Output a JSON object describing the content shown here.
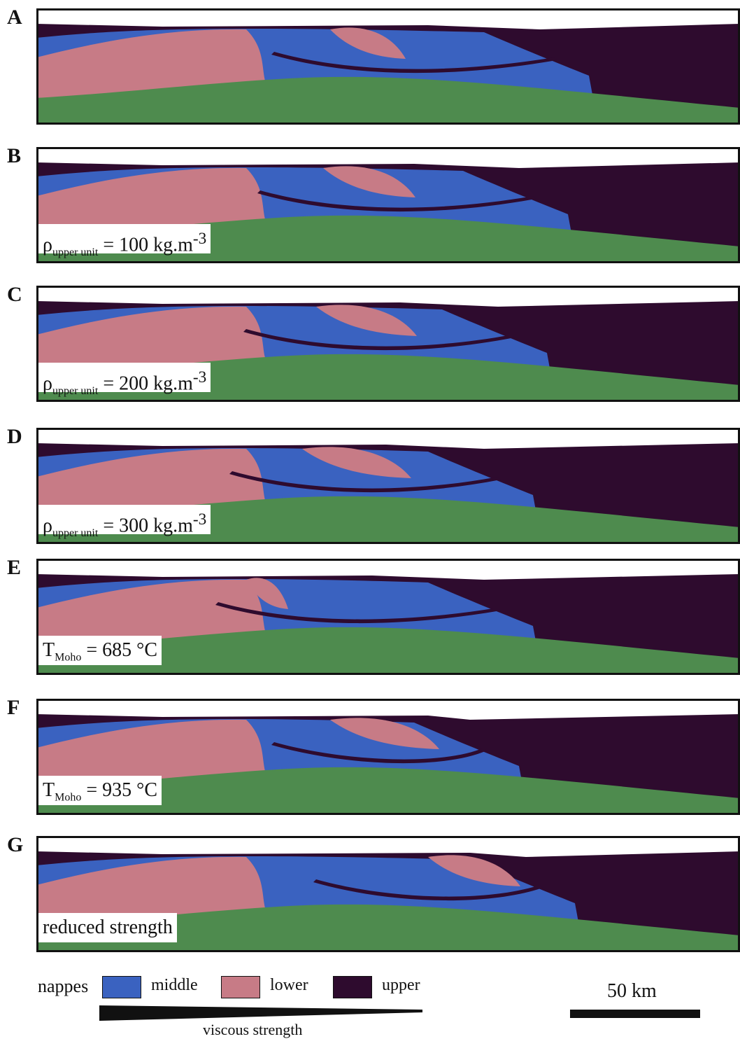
{
  "panels": [
    {
      "letter": "A",
      "label": null
    },
    {
      "letter": "B",
      "label": {
        "sym": "ρ",
        "sub": "upper unit",
        "rest": " = 100 kg.m",
        "sup": "-3"
      }
    },
    {
      "letter": "C",
      "label": {
        "sym": "ρ",
        "sub": "upper unit",
        "rest": " = 200 kg.m",
        "sup": "-3"
      }
    },
    {
      "letter": "D",
      "label": {
        "sym": "ρ",
        "sub": "upper unit",
        "rest": " = 300 kg.m",
        "sup": "-3"
      }
    },
    {
      "letter": "E",
      "label": {
        "sym": "T",
        "sub": "Moho",
        "rest": " = 685 °C",
        "sup": ""
      }
    },
    {
      "letter": "F",
      "label": {
        "sym": "T",
        "sub": "Moho",
        "rest": " = 935 °C",
        "sup": ""
      }
    },
    {
      "letter": "G",
      "label": {
        "sym": "reduced strength",
        "sub": "",
        "rest": "",
        "sup": ""
      }
    }
  ],
  "legend": {
    "title": "nappes",
    "items": [
      {
        "label": "middle",
        "color": "#3a62c0"
      },
      {
        "label": "lower",
        "color": "#c77b86"
      },
      {
        "label": "upper",
        "color": "#2e0b2e"
      }
    ],
    "scale_label": "50 km",
    "wedge_label": "viscous strength"
  },
  "colors": {
    "base": "#4e8b4e",
    "middle": "#3a62c0",
    "lower": "#c77b86",
    "upper": "#2e0b2e"
  }
}
